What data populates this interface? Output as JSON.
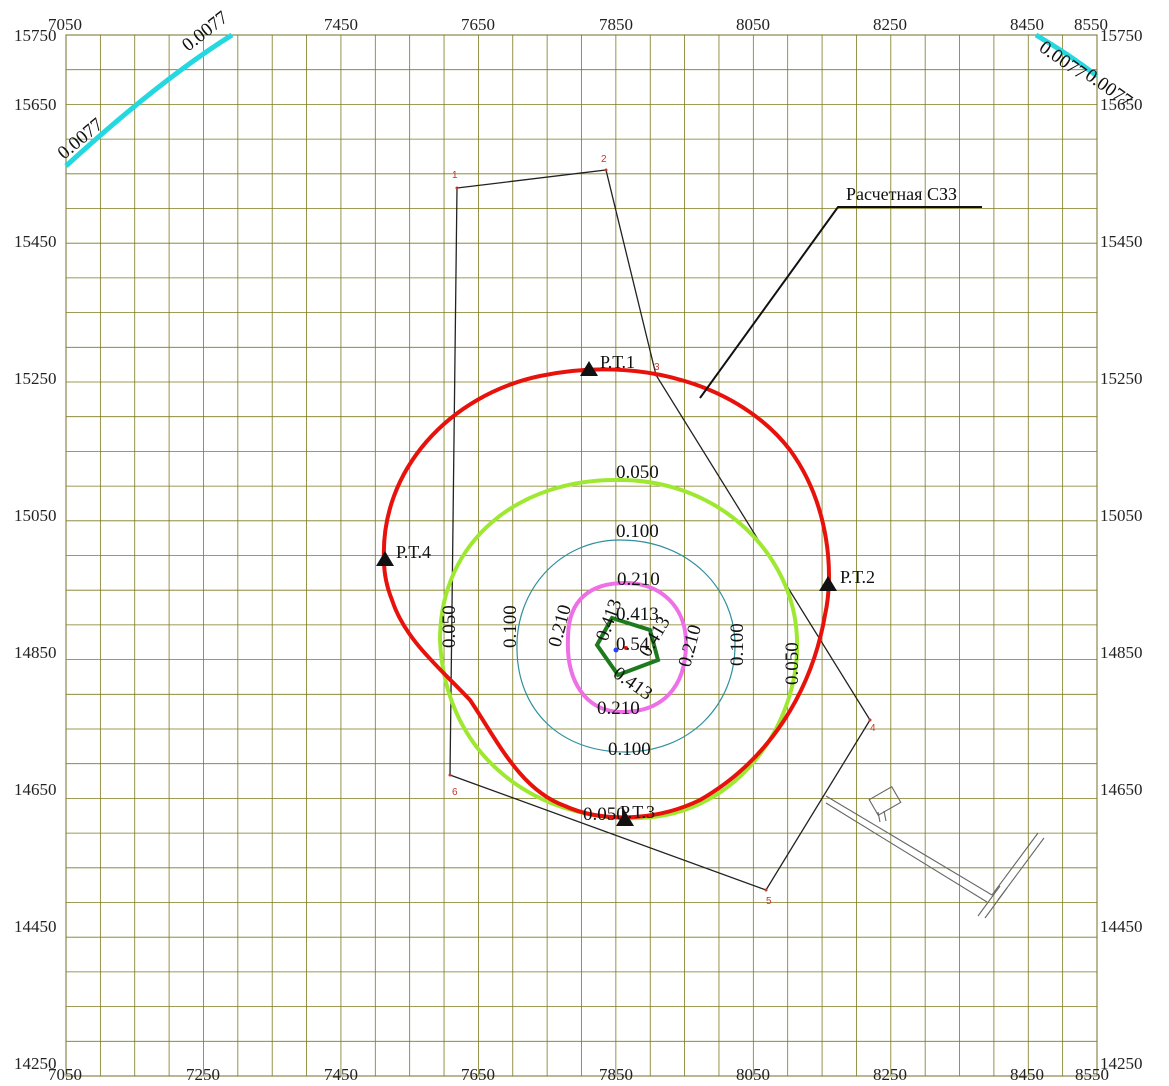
{
  "map": {
    "x_ticks": [
      "7050",
      "7250",
      "7450",
      "7650",
      "7850",
      "8050",
      "8250",
      "8450",
      "8550"
    ],
    "y_ticks": [
      "15750",
      "15650",
      "15450",
      "15250",
      "15050",
      "14850",
      "14650",
      "14450",
      "14250"
    ],
    "grid_step_m": 50,
    "colors": {
      "grid": "#7d7a1e",
      "szz": "#e8120c",
      "c0050": "#9fe832",
      "c0100": "#2f8f9d",
      "c0210": "#ee6fe6",
      "c0413": "#1e7a1e",
      "edge": "#25d8e0",
      "boundary": "#222222",
      "vertex": "#c0392b"
    },
    "callout_label": "Расчетная СЗЗ",
    "contour_labels": {
      "c0050": "0.050",
      "c0100": "0.100",
      "c0210": "0.210",
      "c0413": "0.413",
      "center": "0.54",
      "corner_left": "0.0077",
      "corner_right": "0.0077"
    },
    "points": [
      "Р.Т.1",
      "Р.Т.2",
      "Р.Т.3",
      "Р.Т.4"
    ],
    "vertices": [
      "1",
      "2",
      "3",
      "4",
      "5",
      "6"
    ]
  }
}
